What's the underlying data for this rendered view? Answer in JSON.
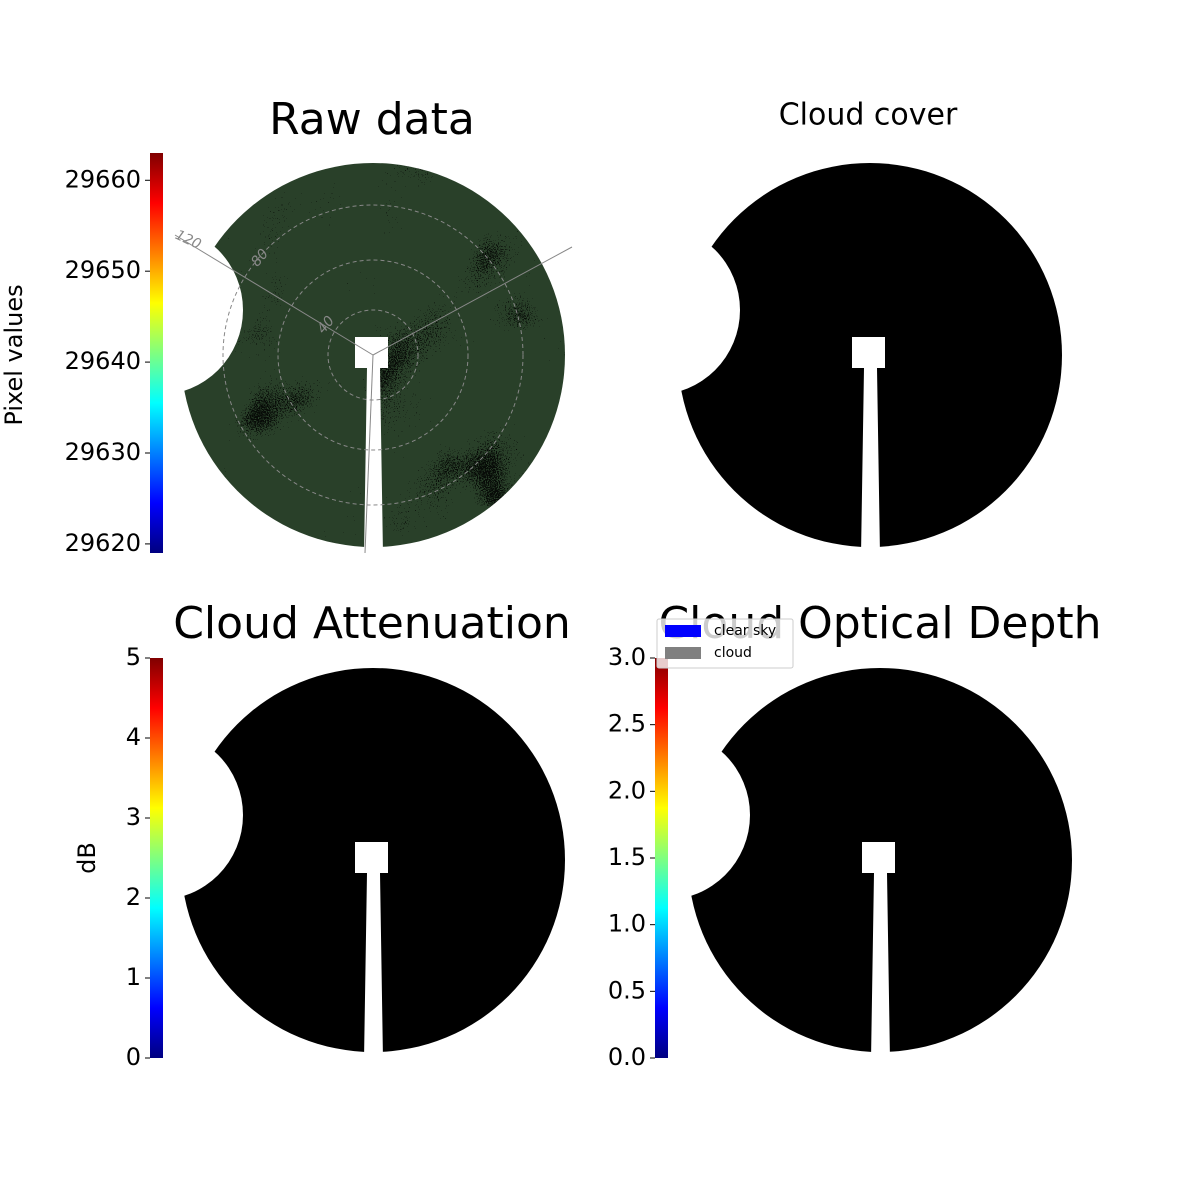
{
  "chart_data": [
    {
      "type": "image",
      "title": "Raw data",
      "colorbar_label": "Pixel values",
      "colormap": "jet",
      "clim": [
        29619,
        29663
      ],
      "cticks": [
        29620,
        29630,
        29640,
        29650,
        29660
      ],
      "annotations": [
        "120",
        "80",
        "40"
      ]
    },
    {
      "type": "image",
      "title": "Cloud cover",
      "series": [
        {
          "name": "clear sky",
          "color": "#0000ff"
        },
        {
          "name": "cloud",
          "color": "#808080"
        }
      ]
    },
    {
      "type": "image",
      "title": "Cloud Attenuation",
      "colorbar_label": "dB",
      "colormap": "jet",
      "clim": [
        0,
        5
      ],
      "cticks": [
        0,
        1,
        2,
        3,
        4,
        5
      ]
    },
    {
      "type": "image",
      "title": "Cloud Optical Depth",
      "colormap": "jet",
      "clim": [
        0,
        3
      ],
      "cticks": [
        {
          "value": 0,
          "label": "0.0"
        },
        0.5,
        {
          "value": 1,
          "label": "1.0"
        },
        1.5,
        {
          "value": 2,
          "label": "2.0"
        },
        2.5,
        {
          "value": 3,
          "label": "3.0"
        }
      ]
    }
  ]
}
